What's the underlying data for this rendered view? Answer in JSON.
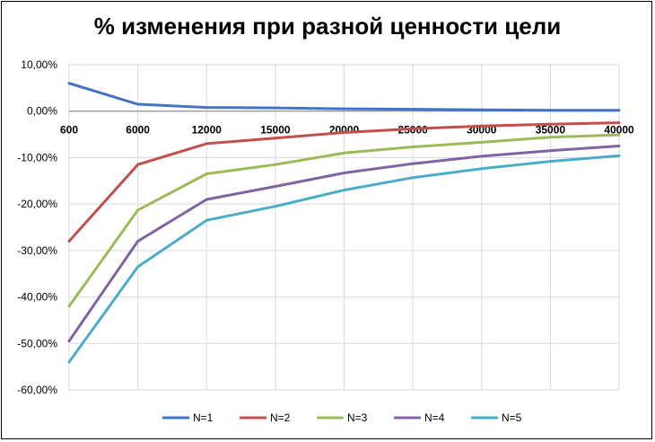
{
  "chart_data": {
    "type": "line",
    "title": "% изменения при разной ценности цели",
    "xlabel": "",
    "ylabel": "",
    "categories": [
      "600",
      "6000",
      "12000",
      "15000",
      "20000",
      "25000",
      "30000",
      "35000",
      "40000"
    ],
    "ylim": [
      -60,
      10
    ],
    "yticks": [
      10,
      0,
      -10,
      -20,
      -30,
      -40,
      -50,
      -60
    ],
    "ytick_labels": [
      "10,00%",
      "0,00%",
      "-10,00%",
      "-20,00%",
      "-30,00%",
      "-40,00%",
      "-50,00%",
      "-60,00%"
    ],
    "grid": true,
    "legend_position": "bottom",
    "series": [
      {
        "name": "N=1",
        "color": "#4472C4",
        "values": [
          6.0,
          1.5,
          0.8,
          0.7,
          0.5,
          0.4,
          0.3,
          0.2,
          0.2
        ]
      },
      {
        "name": "N=2",
        "color": "#C0504D",
        "values": [
          -28.0,
          -11.5,
          -7.0,
          -5.8,
          -4.6,
          -3.8,
          -3.2,
          -2.8,
          -2.5
        ]
      },
      {
        "name": "N=3",
        "color": "#9BBB59",
        "values": [
          -42.0,
          -21.3,
          -13.5,
          -11.5,
          -9.0,
          -7.7,
          -6.7,
          -5.6,
          -5.1
        ]
      },
      {
        "name": "N=4",
        "color": "#8064A2",
        "values": [
          -49.5,
          -28.0,
          -19.0,
          -16.2,
          -13.3,
          -11.3,
          -9.7,
          -8.5,
          -7.5
        ]
      },
      {
        "name": "N=5",
        "color": "#4BACC6",
        "values": [
          -54.0,
          -33.5,
          -23.5,
          -20.5,
          -17.0,
          -14.3,
          -12.4,
          -10.8,
          -9.6
        ]
      }
    ]
  }
}
